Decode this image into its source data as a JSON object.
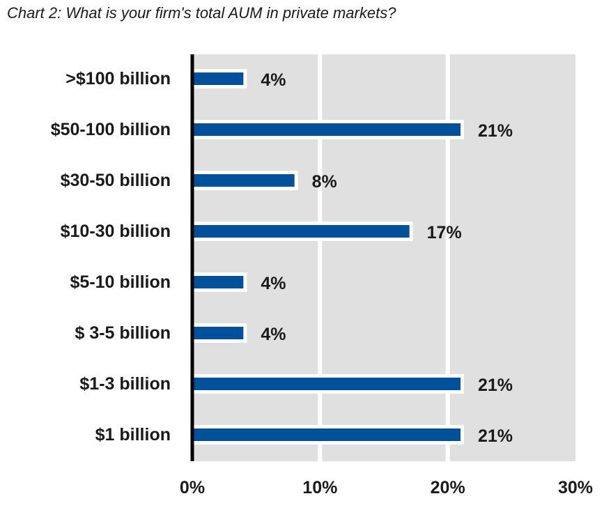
{
  "chart_data": {
    "type": "bar",
    "orientation": "horizontal",
    "title": "Chart 2: What is your firm's total AUM in private markets?",
    "xlabel": "",
    "ylabel": "",
    "categories": [
      ">$100 billion",
      "$50-100 billion",
      "$30-50 billion",
      "$10-30 billion",
      "$5-10 billion",
      "$ 3-5 billion",
      "$1-3 billion",
      "$1 billion"
    ],
    "values": [
      4,
      21,
      8,
      17,
      4,
      4,
      21,
      21
    ],
    "value_labels": [
      "4%",
      "21%",
      "8%",
      "17%",
      "4%",
      "4%",
      "21%",
      "21%"
    ],
    "xlim": [
      0,
      30
    ],
    "xticks": [
      0,
      10,
      20,
      30
    ],
    "xtick_labels": [
      "0%",
      "10%",
      "20%",
      "30%"
    ],
    "grid": true,
    "legend": "none",
    "colors": {
      "bar": "#00519a",
      "background": "#e0e0e0",
      "gridline": "#ffffff",
      "axis": "#000000"
    }
  }
}
